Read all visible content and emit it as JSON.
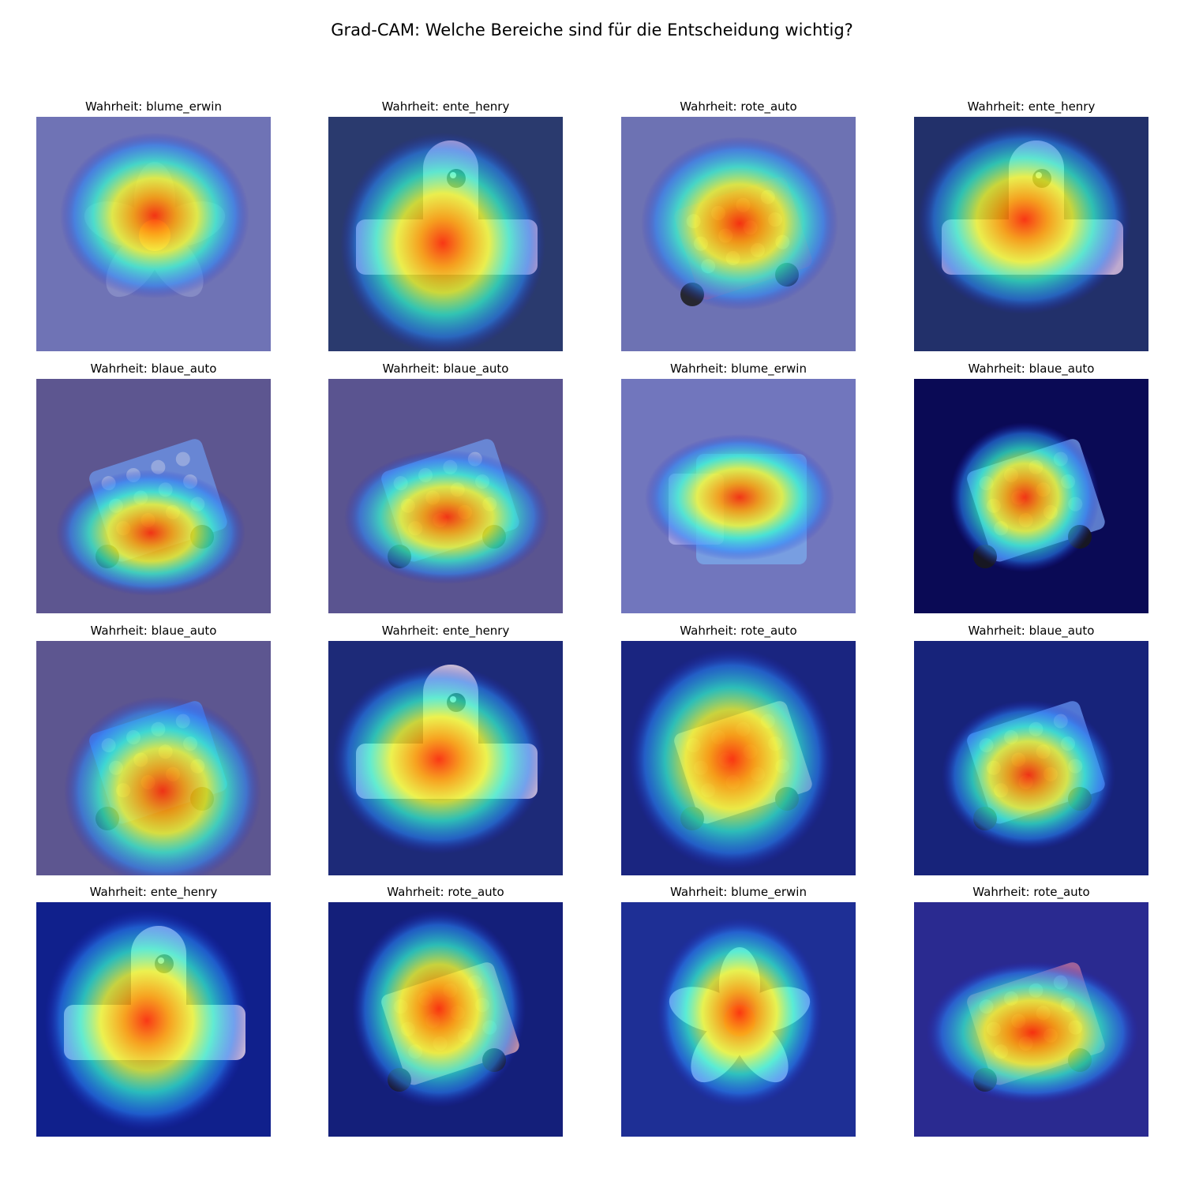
{
  "figure": {
    "title": "Grad-CAM: Welche Bereiche sind für die Entscheidung wichtig?"
  },
  "panels": [
    {
      "label": "Wahrheit: blume_erwin",
      "background": "#6f73b5",
      "object_color": "#8a90c8",
      "object": "flower"
    },
    {
      "label": "Wahrheit: ente_henry",
      "background": "#2a3a6e",
      "object_color": "#d9c0e0",
      "object": "duck"
    },
    {
      "label": "Wahrheit: rote_auto",
      "background": "#6d72b3",
      "object_color": "#9a6aa0",
      "object": "car"
    },
    {
      "label": "Wahrheit: ente_henry",
      "background": "#22306a",
      "object_color": "#d9c0e0",
      "object": "duck"
    },
    {
      "label": "Wahrheit: blaue_auto",
      "background": "#5d5690",
      "object_color": "#6b8fe0",
      "object": "car"
    },
    {
      "label": "Wahrheit: blaue_auto",
      "background": "#5a5490",
      "object_color": "#6b8fe0",
      "object": "car"
    },
    {
      "label": "Wahrheit: blume_erwin",
      "background": "#7176bd",
      "object_color": "#7aa6e8",
      "object": "block"
    },
    {
      "label": "Wahrheit: blaue_auto",
      "background": "#0a0a55",
      "object_color": "#6b8fe0",
      "object": "car"
    },
    {
      "label": "Wahrheit: blaue_auto",
      "background": "#5d5690",
      "object_color": "#4f7fe8",
      "object": "car"
    },
    {
      "label": "Wahrheit: ente_henry",
      "background": "#1d2a78",
      "object_color": "#e9d7e6",
      "object": "duck"
    },
    {
      "label": "Wahrheit: rote_auto",
      "background": "#1a2580",
      "object_color": "#e0a8b0",
      "object": "car"
    },
    {
      "label": "Wahrheit: blaue_auto",
      "background": "#17237a",
      "object_color": "#5c86e6",
      "object": "car"
    },
    {
      "label": "Wahrheit: ente_henry",
      "background": "#10208c",
      "object_color": "#e9d7e6",
      "object": "duck"
    },
    {
      "label": "Wahrheit: rote_auto",
      "background": "#141f7a",
      "object_color": "#e0a8b0",
      "object": "car"
    },
    {
      "label": "Wahrheit: blume_erwin",
      "background": "#1e2f95",
      "object_color": "#c8d8f0",
      "object": "flower"
    },
    {
      "label": "Wahrheit: rote_auto",
      "background": "#2a2a90",
      "object_color": "#b46c9c",
      "object": "car"
    }
  ],
  "heat": {
    "colors": [
      "#ff2a00",
      "#ff9d00",
      "#f5ff2e",
      "#35ffd0",
      "#2a8cff",
      "#2020c8"
    ]
  }
}
